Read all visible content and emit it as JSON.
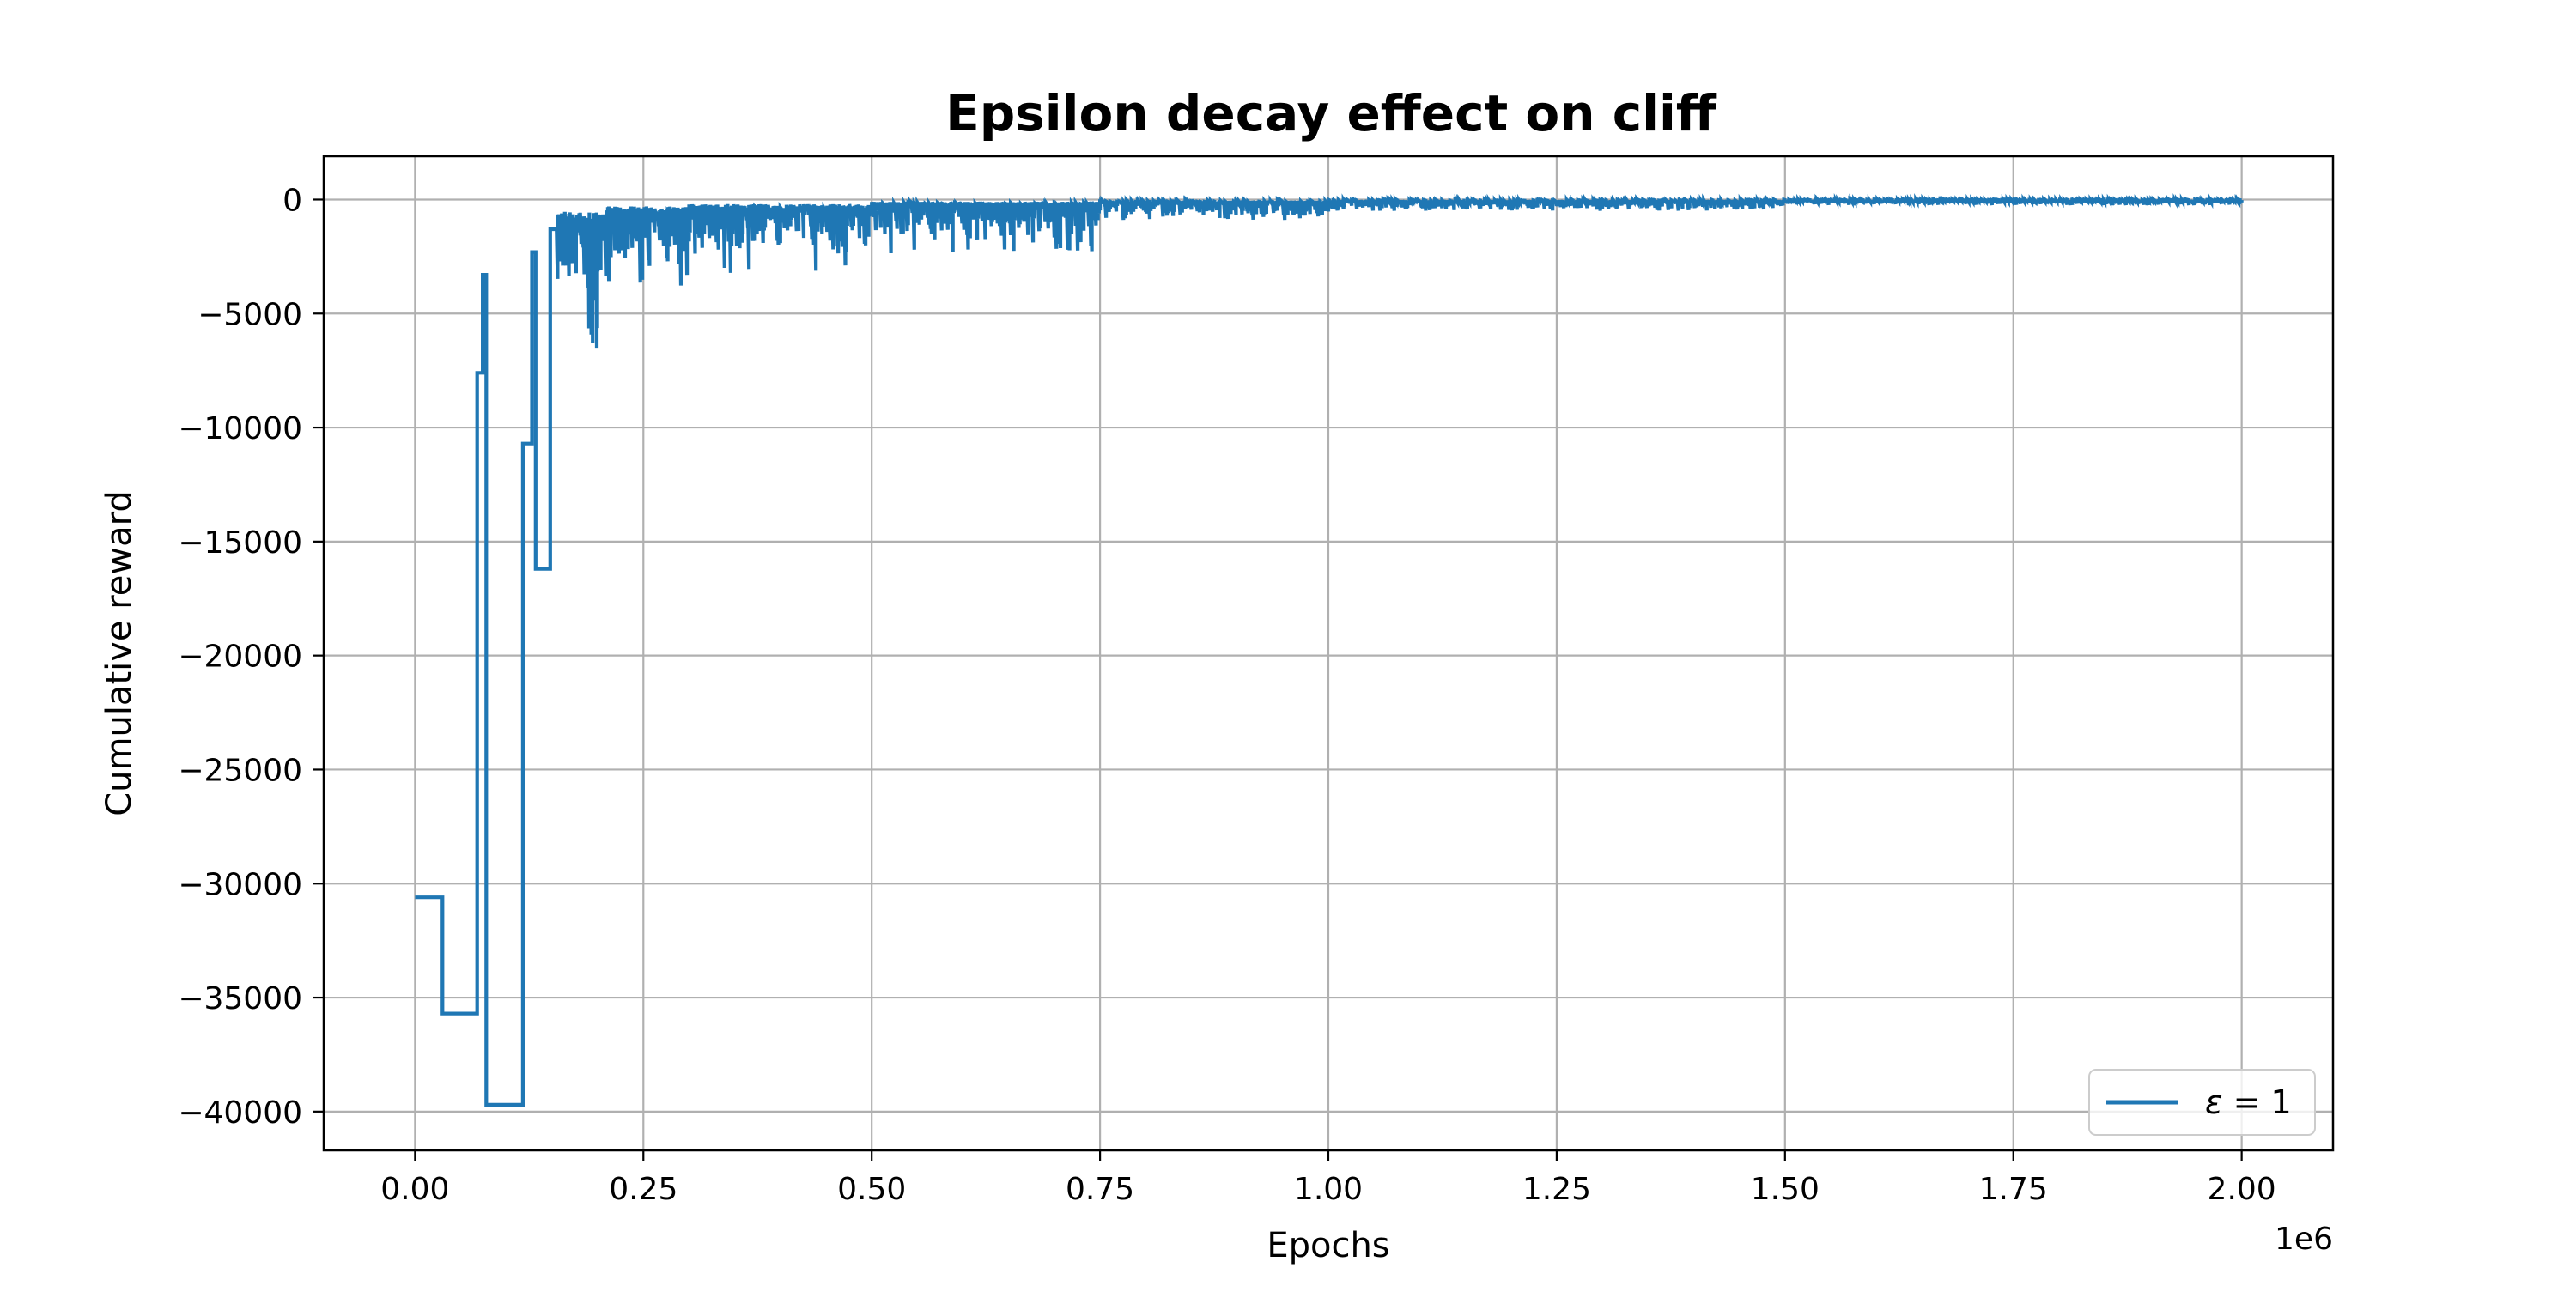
{
  "chart_data": {
    "type": "line",
    "title": "Epsilon decay effect on cliff",
    "xlabel": "Epochs",
    "ylabel": "Cumulative reward",
    "x_offset_label": "1e6",
    "x_scale": 1000000,
    "xlim": [
      -0.1,
      2.1
    ],
    "ylim": [
      -41700,
      1900
    ],
    "x_ticks": [
      0.0,
      0.25,
      0.5,
      0.75,
      1.0,
      1.25,
      1.5,
      1.75,
      2.0
    ],
    "x_tick_labels": [
      "0.00",
      "0.25",
      "0.50",
      "0.75",
      "1.00",
      "1.25",
      "1.50",
      "1.75",
      "2.00"
    ],
    "y_ticks": [
      0,
      -5000,
      -10000,
      -15000,
      -20000,
      -25000,
      -30000,
      -35000,
      -40000
    ],
    "y_tick_labels": [
      "0",
      "−5000",
      "−10000",
      "−15000",
      "−20000",
      "−25000",
      "−30000",
      "−35000",
      "−40000"
    ],
    "grid": true,
    "legend_position": "bottom-right",
    "legend_label_parts": {
      "symbol": "ε",
      "rest": " = 1"
    },
    "colors": {
      "series": "#1f77b4",
      "grid": "#b0b0b0",
      "frame": "#000000",
      "legend_border": "#cccccc"
    },
    "series": [
      {
        "name": "ε = 1",
        "step_points": [
          [
            0.0,
            -30600
          ],
          [
            0.03,
            -30600
          ],
          [
            0.03,
            -35700
          ],
          [
            0.068,
            -35700
          ],
          [
            0.068,
            -7600
          ],
          [
            0.074,
            -7600
          ],
          [
            0.074,
            -3300
          ],
          [
            0.078,
            -3300
          ],
          [
            0.078,
            -39700
          ],
          [
            0.118,
            -39700
          ],
          [
            0.118,
            -10700
          ],
          [
            0.128,
            -10700
          ],
          [
            0.128,
            -2300
          ],
          [
            0.132,
            -2300
          ],
          [
            0.132,
            -16200
          ],
          [
            0.148,
            -16200
          ],
          [
            0.148,
            -1300
          ],
          [
            0.155,
            -1300
          ]
        ],
        "noisy_segments": [
          {
            "x_range": [
              0.155,
              0.21
            ],
            "upper": -1000,
            "lower": -3500,
            "min_spike": -4300
          },
          {
            "x_range": [
              0.19,
              0.2
            ],
            "upper": -2500,
            "lower": -6500,
            "min_spike": -6500
          },
          {
            "x_range": [
              0.21,
              0.3
            ],
            "upper": -600,
            "lower": -3000,
            "min_spike": -3800
          },
          {
            "x_range": [
              0.3,
              0.5
            ],
            "upper": -400,
            "lower": -2200,
            "min_spike": -3300
          },
          {
            "x_range": [
              0.5,
              0.75
            ],
            "upper": -200,
            "lower": -1600,
            "min_spike": -2400
          },
          {
            "x_range": [
              0.75,
              1.0
            ],
            "upper": -100,
            "lower": -700,
            "min_spike": -900
          },
          {
            "x_range": [
              1.0,
              1.5
            ],
            "upper": -50,
            "lower": -400,
            "min_spike": -500
          },
          {
            "x_range": [
              1.5,
              2.0
            ],
            "upper": -30,
            "lower": -200,
            "min_spike": -250
          }
        ]
      }
    ]
  }
}
